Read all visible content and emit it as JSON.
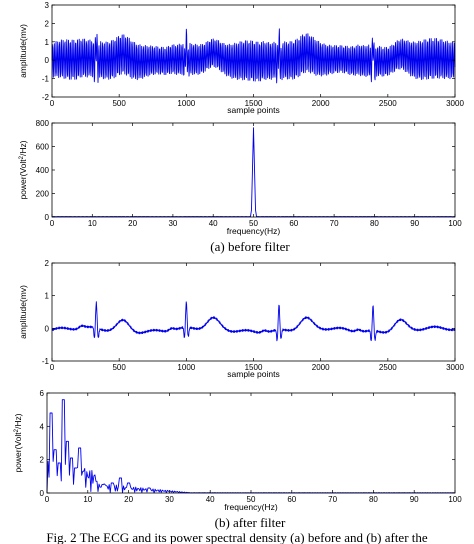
{
  "figure": {
    "caption_a": "(a) before filter",
    "caption_b": "(b) after filter",
    "figure_caption": "Fig. 2 The ECG and its power spectral density (a) before and (b) after the"
  },
  "colors": {
    "signal": "#0000ee",
    "axes": "#000000"
  },
  "chart_data": [
    {
      "type": "line",
      "ylabel": "amplitude(mv)",
      "xlabel": "sample points",
      "xlim": [
        0,
        3000
      ],
      "ylim": [
        -2,
        3
      ],
      "xticks": [
        0,
        500,
        1000,
        1500,
        2000,
        2500,
        3000
      ],
      "yticks": [
        -2,
        -1,
        0,
        1,
        2,
        3
      ],
      "series": [
        {
          "description": "ECG with strong 50 Hz interference, envelope approx -1.1 to 1.1 mV, R-peak spikes near 1.8 mV",
          "x": [
            0,
            330,
            1000,
            1690,
            2390
          ],
          "y": [
            0.9,
            1.8,
            1.6,
            1.4,
            1.8
          ]
        }
      ]
    },
    {
      "type": "line",
      "ylabel": "power(Volt^2/Hz)",
      "xlabel": "frequency(Hz)",
      "xlim": [
        0,
        100
      ],
      "ylim": [
        0,
        800
      ],
      "xticks": [
        0,
        10,
        20,
        30,
        40,
        50,
        60,
        70,
        80,
        90,
        100
      ],
      "yticks": [
        0,
        200,
        400,
        600,
        800
      ],
      "series": [
        {
          "x": [
            0,
            49.5,
            50,
            50.5,
            100
          ],
          "y": [
            2,
            5,
            760,
            5,
            2
          ]
        }
      ]
    },
    {
      "type": "line",
      "ylabel": "amplitude(mv)",
      "xlabel": "sample points",
      "xlim": [
        0,
        3000
      ],
      "ylim": [
        -1,
        2
      ],
      "xticks": [
        0,
        500,
        1000,
        1500,
        2000,
        2500,
        3000
      ],
      "yticks": [
        -1,
        0,
        1,
        2
      ],
      "series": [
        {
          "description": "filtered ECG with R-peaks",
          "x": [
            330,
            1000,
            1690,
            2390
          ],
          "y": [
            0.65,
            0.6,
            0.7,
            0.75
          ]
        }
      ]
    },
    {
      "type": "line",
      "ylabel": "power(Volt^2/Hz)",
      "xlabel": "frequency(Hz)",
      "xlim": [
        0,
        100
      ],
      "ylim": [
        0,
        6
      ],
      "xticks": [
        0,
        10,
        20,
        30,
        40,
        50,
        60,
        70,
        80,
        90,
        100
      ],
      "yticks": [
        0,
        2,
        4,
        6
      ],
      "series": [
        {
          "x": [
            1,
            2,
            3,
            4,
            5,
            6,
            7,
            8,
            9,
            10,
            12,
            14,
            16,
            18,
            20,
            25,
            30
          ],
          "y": [
            4.8,
            2.6,
            1.8,
            5.6,
            3.1,
            2.1,
            1.5,
            2.7,
            1.3,
            0.9,
            0.7,
            0.5,
            0.6,
            0.9,
            0.6,
            0.3,
            0.1
          ]
        }
      ]
    }
  ]
}
